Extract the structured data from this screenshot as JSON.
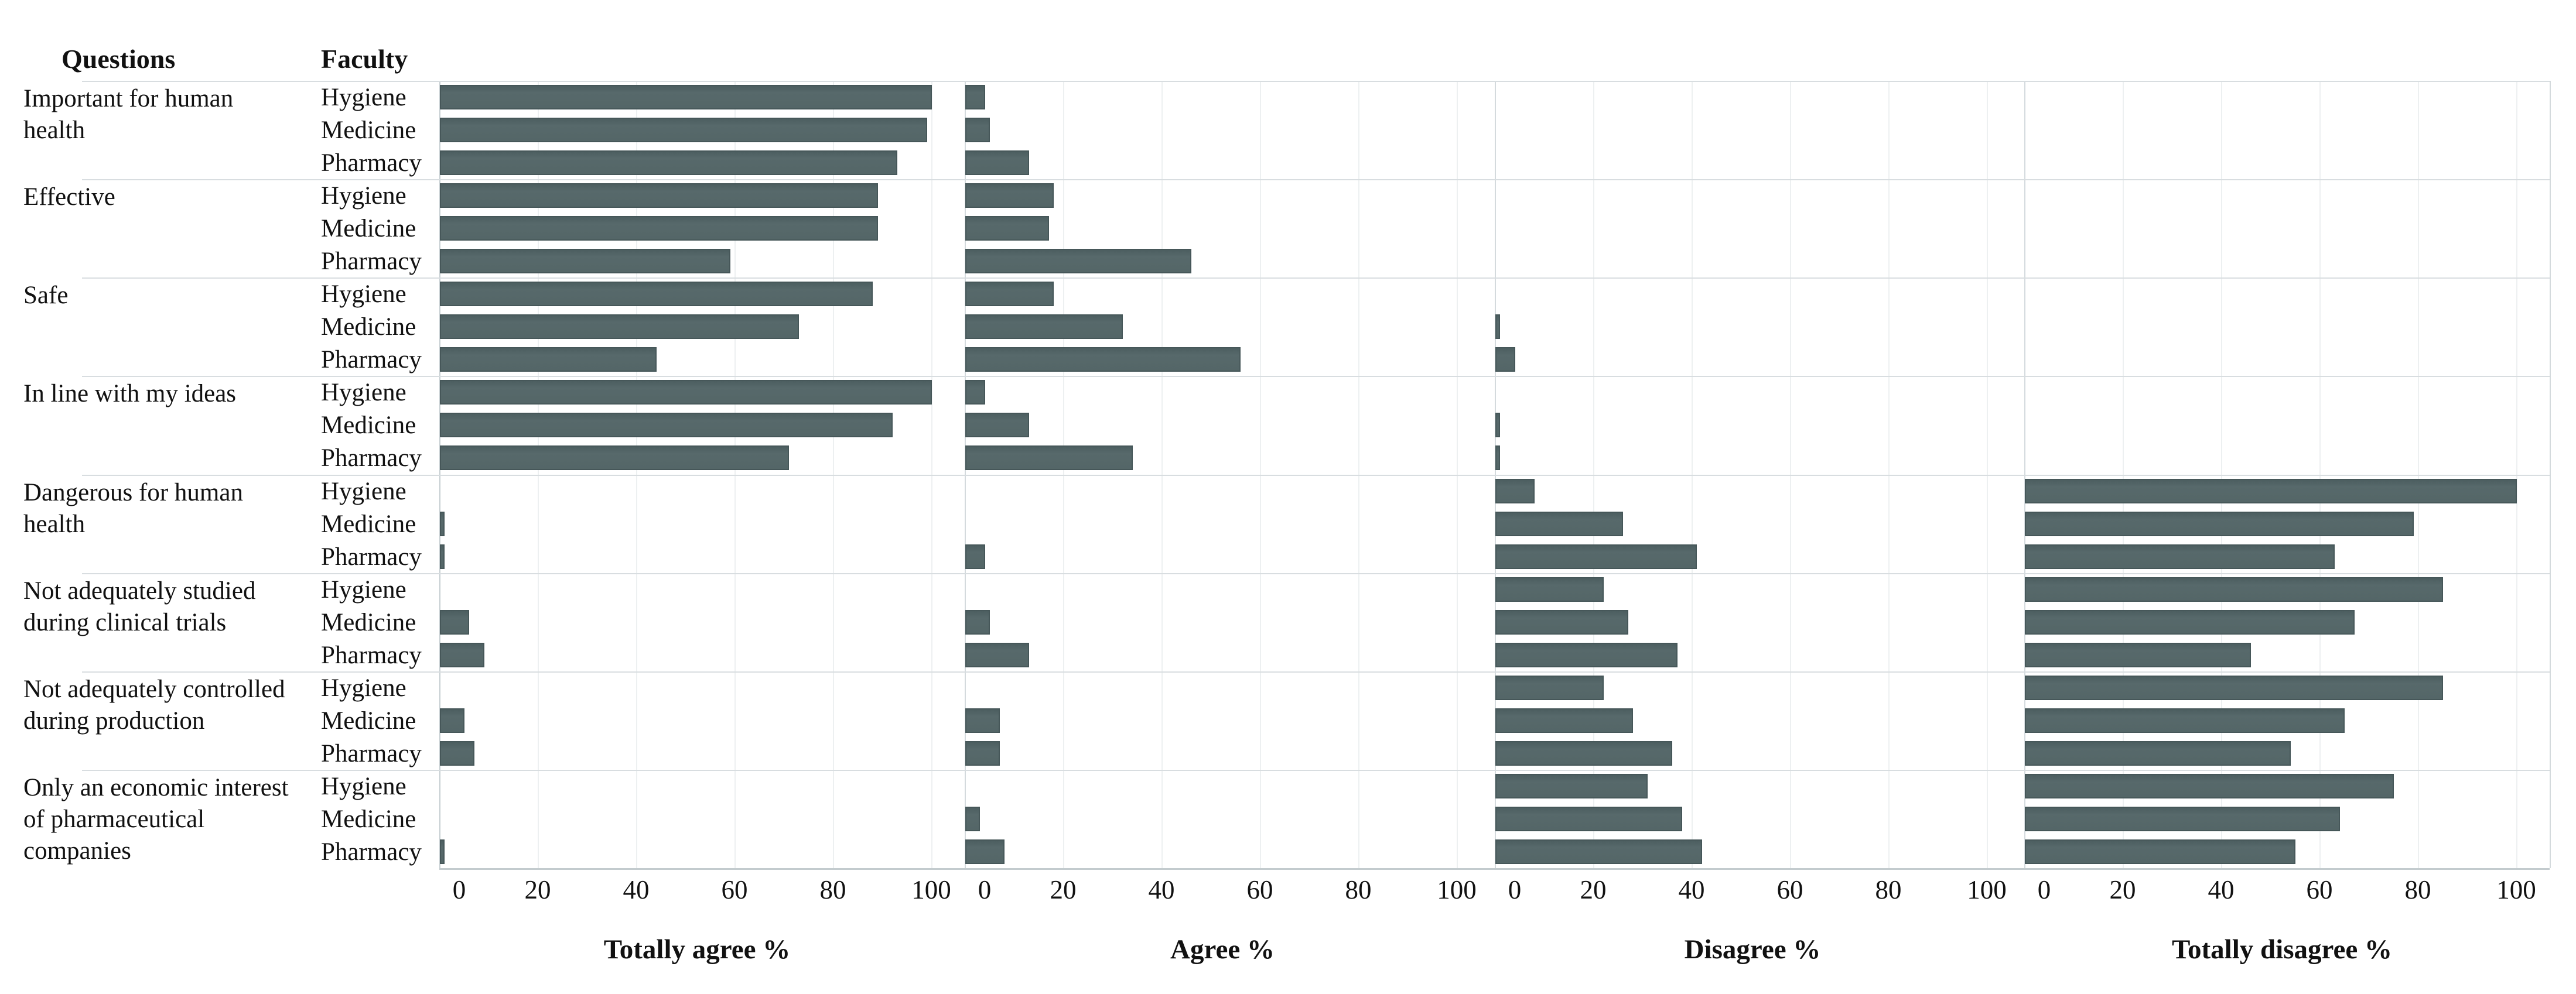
{
  "header": {
    "questions_label": "Questions",
    "faculty_label": "Faculty"
  },
  "chart_data": {
    "type": "bar",
    "orientation": "horizontal",
    "title": "",
    "panels": [
      "Totally agree %",
      "Agree %",
      "Disagree %",
      "Totally disagree %"
    ],
    "faculties": [
      "Hygiene",
      "Medicine",
      "Pharmacy"
    ],
    "questions": [
      "Important for human\nhealth",
      "Effective",
      "Safe",
      "In line with my ideas",
      "Dangerous for human\nhealth",
      "Not adequately studied\nduring clinical trials",
      "Not adequately controlled\nduring production",
      "Only an economic interest\nof pharmaceutical\ncompanies"
    ],
    "axis": {
      "ticks": [
        0,
        20,
        40,
        60,
        80,
        100
      ],
      "min": 0,
      "max": 100,
      "grid": true,
      "legend_position": "none"
    },
    "values": [
      [
        [
          100,
          99,
          93
        ],
        [
          89,
          89,
          59
        ],
        [
          88,
          73,
          44
        ],
        [
          100,
          92,
          71
        ],
        [
          0,
          1,
          1
        ],
        [
          0,
          6,
          9
        ],
        [
          0,
          5,
          7
        ],
        [
          0,
          0,
          1
        ]
      ],
      [
        [
          4,
          5,
          13
        ],
        [
          18,
          17,
          46
        ],
        [
          18,
          32,
          56
        ],
        [
          4,
          13,
          34
        ],
        [
          0,
          0,
          4
        ],
        [
          0,
          5,
          13
        ],
        [
          0,
          7,
          7
        ],
        [
          0,
          3,
          8
        ]
      ],
      [
        [
          0,
          0,
          0
        ],
        [
          0,
          0,
          0
        ],
        [
          0,
          1,
          4
        ],
        [
          0,
          1,
          1
        ],
        [
          8,
          26,
          41
        ],
        [
          22,
          27,
          37
        ],
        [
          22,
          28,
          36
        ],
        [
          31,
          38,
          42
        ]
      ],
      [
        [
          0,
          0,
          0
        ],
        [
          0,
          0,
          0
        ],
        [
          0,
          0,
          0
        ],
        [
          0,
          0,
          0
        ],
        [
          100,
          79,
          63
        ],
        [
          85,
          67,
          46
        ],
        [
          85,
          65,
          54
        ],
        [
          75,
          64,
          55
        ]
      ]
    ],
    "colors": {
      "bar": "#566869",
      "bar_border": "#465759",
      "separator": "#d8dde0",
      "gridline": "#edf0f1",
      "axis_line": "#c3cbce",
      "text": "#111111"
    }
  }
}
